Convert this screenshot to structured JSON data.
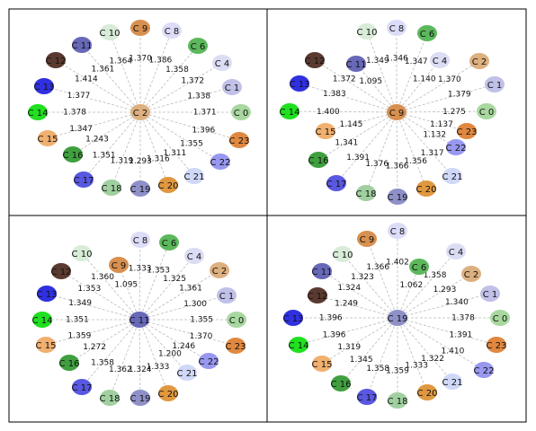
{
  "panels": [
    {
      "center": {
        "label": "C 2",
        "color": "#ddb080"
      },
      "nodes": [
        {
          "label": "C 9",
          "color": "#d89050",
          "edge": "1.370"
        },
        {
          "label": "C 8",
          "color": "#dcdcf8",
          "edge": "1.386"
        },
        {
          "label": "C 6",
          "color": "#5cb85c",
          "edge": "1.358"
        },
        {
          "label": "C 4",
          "color": "#dcdcf4",
          "edge": "1.372"
        },
        {
          "label": "C 1",
          "color": "#c0c0e8",
          "edge": "1.338"
        },
        {
          "label": "C 0",
          "color": "#a8d8a0",
          "edge": "1.371"
        },
        {
          "label": "C 23",
          "color": "#e08840",
          "edge": "1.396"
        },
        {
          "label": "C 22",
          "color": "#9898f0",
          "edge": "1.355"
        },
        {
          "label": "C 21",
          "color": "#d0d8f8",
          "edge": "1.311"
        },
        {
          "label": "C 20",
          "color": "#e09840",
          "edge": "1.316"
        },
        {
          "label": "C 19",
          "color": "#9090c8",
          "edge": "1.293"
        },
        {
          "label": "C 18",
          "color": "#a0d0a0",
          "edge": "1.319"
        },
        {
          "label": "C 17",
          "color": "#5858e0",
          "edge": "1.351"
        },
        {
          "label": "C 16",
          "color": "#40a040",
          "edge": "1.243"
        },
        {
          "label": "C 15",
          "color": "#f0b070",
          "edge": "1.347"
        },
        {
          "label": "C 14",
          "color": "#20e020",
          "edge": "1.378"
        },
        {
          "label": "C 13",
          "color": "#3030e0",
          "edge": "1.377"
        },
        {
          "label": "C 12",
          "color": "#5a3a30",
          "edge": "1.414"
        },
        {
          "label": "C 11",
          "color": "#6868b8",
          "edge": "1.361"
        },
        {
          "label": "C 10",
          "color": "#d8ecd8",
          "edge": "1.364"
        }
      ]
    },
    {
      "center": {
        "label": "C 9",
        "color": "#d89050"
      },
      "nodes": [
        {
          "label": "C 8",
          "color": "#dcdcf8",
          "edge": "1.346"
        },
        {
          "label": "C 6",
          "color": "#5cb85c",
          "edge": "1.347"
        },
        {
          "label": "C 4",
          "color": "#dcdcf4",
          "edge": "1.140"
        },
        {
          "label": "C 2",
          "color": "#ddb080",
          "edge": "1.370"
        },
        {
          "label": "C 1",
          "color": "#c0c0e8",
          "edge": "1.379"
        },
        {
          "label": "C 0",
          "color": "#a8d8a0",
          "edge": "1.275"
        },
        {
          "label": "C 23",
          "color": "#e08840",
          "edge": "1.137"
        },
        {
          "label": "C 22",
          "color": "#9898f0",
          "edge": "1.132"
        },
        {
          "label": "C 21",
          "color": "#d0d8f8",
          "edge": "1.317"
        },
        {
          "label": "C 20",
          "color": "#e09840",
          "edge": "1.356"
        },
        {
          "label": "C 19",
          "color": "#9090c8",
          "edge": "1.366"
        },
        {
          "label": "C 18",
          "color": "#a0d0a0",
          "edge": "1.376"
        },
        {
          "label": "C 17",
          "color": "#5858e0",
          "edge": "1.391"
        },
        {
          "label": "C 16",
          "color": "#40a040",
          "edge": "1.341"
        },
        {
          "label": "C 15",
          "color": "#f0b070",
          "edge": "1.145"
        },
        {
          "label": "C 14",
          "color": "#20e020",
          "edge": "1.400"
        },
        {
          "label": "C 13",
          "color": "#3030e0",
          "edge": "1.383"
        },
        {
          "label": "C 12",
          "color": "#5a3a30",
          "edge": "1.372"
        },
        {
          "label": "C 11",
          "color": "#6868b8",
          "edge": "1.095"
        },
        {
          "label": "C 10",
          "color": "#d8ecd8",
          "edge": "1.349"
        }
      ]
    },
    {
      "center": {
        "label": "C 11",
        "color": "#6868b8"
      },
      "nodes": [
        {
          "label": "C 8",
          "color": "#dcdcf8",
          "edge": "1.333"
        },
        {
          "label": "C 6",
          "color": "#5cb85c",
          "edge": "1.353"
        },
        {
          "label": "C 4",
          "color": "#dcdcf4",
          "edge": "1.325"
        },
        {
          "label": "C 2",
          "color": "#ddb080",
          "edge": "1.361"
        },
        {
          "label": "C 1",
          "color": "#c0c0e8",
          "edge": "1.300"
        },
        {
          "label": "C 0",
          "color": "#a8d8a0",
          "edge": "1.355"
        },
        {
          "label": "C 23",
          "color": "#e08840",
          "edge": "1.370"
        },
        {
          "label": "C 22",
          "color": "#9898f0",
          "edge": "1.246"
        },
        {
          "label": "C 21",
          "color": "#d0d8f8",
          "edge": "1.200"
        },
        {
          "label": "C 20",
          "color": "#e09840",
          "edge": "1.333"
        },
        {
          "label": "C 19",
          "color": "#9090c8",
          "edge": "1.324"
        },
        {
          "label": "C 18",
          "color": "#a0d0a0",
          "edge": "1.362"
        },
        {
          "label": "C 17",
          "color": "#5858e0",
          "edge": "1.358"
        },
        {
          "label": "C 16",
          "color": "#40a040",
          "edge": "1.272"
        },
        {
          "label": "C 15",
          "color": "#f0b070",
          "edge": "1.359"
        },
        {
          "label": "C 14",
          "color": "#20e020",
          "edge": "1.351"
        },
        {
          "label": "C 13",
          "color": "#3030e0",
          "edge": "1.349"
        },
        {
          "label": "C 12",
          "color": "#5a3a30",
          "edge": "1.353"
        },
        {
          "label": "C 9",
          "color": "#d89050",
          "edge": "1.095"
        },
        {
          "label": "C 10",
          "color": "#d8ecd8",
          "edge": "1.360"
        }
      ]
    },
    {
      "center": {
        "label": "C 19",
        "color": "#9090c8"
      },
      "nodes": [
        {
          "label": "C 8",
          "color": "#dcdcf8",
          "edge": "1.402"
        },
        {
          "label": "C 6",
          "color": "#5cb85c",
          "edge": "1.062"
        },
        {
          "label": "C 4",
          "color": "#dcdcf4",
          "edge": "1.358"
        },
        {
          "label": "C 2",
          "color": "#ddb080",
          "edge": "1.293"
        },
        {
          "label": "C 1",
          "color": "#c0c0e8",
          "edge": "1.340"
        },
        {
          "label": "C 0",
          "color": "#a8d8a0",
          "edge": "1.378"
        },
        {
          "label": "C 23",
          "color": "#e08840",
          "edge": "1.391"
        },
        {
          "label": "C 22",
          "color": "#9898f0",
          "edge": "1.410"
        },
        {
          "label": "C 21",
          "color": "#d0d8f8",
          "edge": "1.322"
        },
        {
          "label": "C 20",
          "color": "#e09840",
          "edge": "1.333"
        },
        {
          "label": "C 18",
          "color": "#a0d0a0",
          "edge": "1.359"
        },
        {
          "label": "C 17",
          "color": "#5858e0",
          "edge": "1.358"
        },
        {
          "label": "C 16",
          "color": "#40a040",
          "edge": "1.345"
        },
        {
          "label": "C 15",
          "color": "#f0b070",
          "edge": "1.319"
        },
        {
          "label": "C 14",
          "color": "#20e020",
          "edge": "1.396"
        },
        {
          "label": "C 13",
          "color": "#3030e0",
          "edge": "1.396"
        },
        {
          "label": "C 12",
          "color": "#5a3a30",
          "edge": "1.249"
        },
        {
          "label": "C 11",
          "color": "#6868b8",
          "edge": "1.324"
        },
        {
          "label": "C 10",
          "color": "#d8ecd8",
          "edge": "1.323"
        },
        {
          "label": "C 9",
          "color": "#d89050",
          "edge": "1.366"
        }
      ]
    }
  ]
}
